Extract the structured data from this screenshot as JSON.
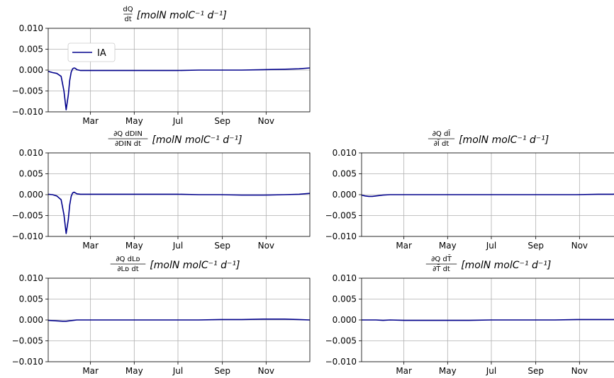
{
  "chart_data": [
    {
      "type": "line",
      "title_parts": {
        "num": "dQ",
        "den": "dt",
        "unit": "[molN molC⁻¹ d⁻¹]"
      },
      "x": [
        0,
        6,
        12,
        18,
        22,
        25,
        28,
        30,
        32,
        34,
        36,
        38,
        40,
        45,
        55,
        70,
        90,
        120,
        150,
        180,
        210,
        240,
        270,
        300,
        330,
        350,
        365
      ],
      "series": [
        {
          "name": "IA",
          "color": "#00008b",
          "values": [
            -0.0003,
            -0.0006,
            -0.0008,
            -0.0015,
            -0.005,
            -0.0095,
            -0.006,
            -0.0025,
            -0.0005,
            0.0003,
            0.0005,
            0.0004,
            0.0001,
            -0.0001,
            -0.0001,
            -0.0001,
            -0.0001,
            -0.0001,
            -0.0001,
            -0.0001,
            0.0,
            0.0,
            0.0,
            0.0001,
            0.0002,
            0.0003,
            0.0005
          ]
        }
      ],
      "xlim": [
        0,
        365
      ],
      "ylim": [
        -0.01,
        0.01
      ],
      "xticks": [
        {
          "pos": 59,
          "label": "Mar"
        },
        {
          "pos": 120,
          "label": "May"
        },
        {
          "pos": 181,
          "label": "Jul"
        },
        {
          "pos": 243,
          "label": "Sep"
        },
        {
          "pos": 304,
          "label": "Nov"
        }
      ],
      "yticks": [
        {
          "pos": 0.01,
          "label": "0.010"
        },
        {
          "pos": 0.005,
          "label": "0.005"
        },
        {
          "pos": 0.0,
          "label": "0.000"
        },
        {
          "pos": -0.005,
          "label": "−0.005"
        },
        {
          "pos": -0.01,
          "label": "−0.010"
        }
      ],
      "grid": true,
      "legend": "upper-left"
    },
    {
      "type": "line",
      "title_parts": {
        "num": "∂Q  dDIN",
        "den": "∂DIN   dt",
        "unit": "[molN molC⁻¹ d⁻¹]"
      },
      "x": [
        0,
        6,
        12,
        18,
        22,
        25,
        28,
        30,
        32,
        34,
        36,
        38,
        40,
        45,
        55,
        70,
        90,
        120,
        150,
        180,
        210,
        240,
        270,
        300,
        330,
        350,
        365
      ],
      "series": [
        {
          "name": "IA",
          "color": "#00008b",
          "values": [
            0.0001,
            0.0,
            -0.0003,
            -0.0012,
            -0.0048,
            -0.0093,
            -0.006,
            -0.0025,
            -0.0004,
            0.0004,
            0.0006,
            0.0004,
            0.0002,
            0.0001,
            0.0001,
            0.0001,
            0.0001,
            0.0001,
            0.0001,
            0.0001,
            0.0,
            0.0,
            -0.0001,
            -0.0001,
            0.0,
            0.0001,
            0.0003
          ]
        }
      ],
      "xlim": [
        0,
        365
      ],
      "ylim": [
        -0.01,
        0.01
      ],
      "xticks": [
        {
          "pos": 59,
          "label": "Mar"
        },
        {
          "pos": 120,
          "label": "May"
        },
        {
          "pos": 181,
          "label": "Jul"
        },
        {
          "pos": 243,
          "label": "Sep"
        },
        {
          "pos": 304,
          "label": "Nov"
        }
      ],
      "yticks": [
        {
          "pos": 0.01,
          "label": "0.010"
        },
        {
          "pos": 0.005,
          "label": "0.005"
        },
        {
          "pos": 0.0,
          "label": "0.000"
        },
        {
          "pos": -0.005,
          "label": "−0.005"
        },
        {
          "pos": -0.01,
          "label": "−0.010"
        }
      ],
      "grid": true
    },
    {
      "type": "line",
      "title_parts": {
        "num": "∂Q  dĪ",
        "den": "∂Ī  dt",
        "unit": "[molN molC⁻¹ d⁻¹]"
      },
      "x": [
        0,
        5,
        10,
        15,
        20,
        25,
        30,
        40,
        60,
        90,
        120,
        150,
        180,
        210,
        240,
        270,
        300,
        330,
        350,
        365
      ],
      "series": [
        {
          "name": "IA",
          "color": "#00008b",
          "values": [
            -0.0001,
            -0.0003,
            -0.0004,
            -0.0004,
            -0.0003,
            -0.0002,
            -0.0001,
            0.0,
            0.0,
            0.0,
            0.0,
            0.0,
            0.0,
            0.0,
            0.0,
            0.0,
            0.0,
            0.0001,
            0.0001,
            0.0002
          ]
        }
      ],
      "xlim": [
        0,
        365
      ],
      "ylim": [
        -0.01,
        0.01
      ],
      "xticks": [
        {
          "pos": 59,
          "label": "Mar"
        },
        {
          "pos": 120,
          "label": "May"
        },
        {
          "pos": 181,
          "label": "Jul"
        },
        {
          "pos": 243,
          "label": "Sep"
        },
        {
          "pos": 304,
          "label": "Nov"
        }
      ],
      "yticks": [
        {
          "pos": 0.01,
          "label": "0.010"
        },
        {
          "pos": 0.005,
          "label": "0.005"
        },
        {
          "pos": 0.0,
          "label": "0.000"
        },
        {
          "pos": -0.005,
          "label": "−0.005"
        },
        {
          "pos": -0.01,
          "label": "−0.010"
        }
      ],
      "grid": true
    },
    {
      "type": "line",
      "title_parts": {
        "num": "∂Q  dLᴅ",
        "den": "∂Lᴅ   dt",
        "unit": "[molN molC⁻¹ d⁻¹]"
      },
      "x": [
        0,
        10,
        20,
        25,
        30,
        35,
        40,
        60,
        90,
        120,
        150,
        180,
        210,
        240,
        270,
        300,
        330,
        350,
        365
      ],
      "series": [
        {
          "name": "IA",
          "color": "#00008b",
          "values": [
            -0.0001,
            -0.0002,
            -0.0003,
            -0.0003,
            -0.0002,
            -0.0001,
            0.0,
            0.0,
            0.0,
            0.0,
            0.0,
            0.0,
            0.0,
            0.0001,
            0.0001,
            0.0002,
            0.0002,
            0.0001,
            0.0
          ]
        }
      ],
      "xlim": [
        0,
        365
      ],
      "ylim": [
        -0.01,
        0.01
      ],
      "xticks": [
        {
          "pos": 59,
          "label": "Mar"
        },
        {
          "pos": 120,
          "label": "May"
        },
        {
          "pos": 181,
          "label": "Jul"
        },
        {
          "pos": 243,
          "label": "Sep"
        },
        {
          "pos": 304,
          "label": "Nov"
        }
      ],
      "yticks": [
        {
          "pos": 0.01,
          "label": "0.010"
        },
        {
          "pos": 0.005,
          "label": "0.005"
        },
        {
          "pos": 0.0,
          "label": "0.000"
        },
        {
          "pos": -0.005,
          "label": "−0.005"
        },
        {
          "pos": -0.01,
          "label": "−0.010"
        }
      ],
      "grid": true
    },
    {
      "type": "line",
      "title_parts": {
        "num": "∂Q  dT̄",
        "den": "∂T̄  dt",
        "unit": "[molN molC⁻¹ d⁻¹]"
      },
      "x": [
        0,
        10,
        20,
        30,
        40,
        60,
        90,
        120,
        150,
        180,
        210,
        240,
        270,
        300,
        330,
        350,
        365
      ],
      "series": [
        {
          "name": "IA",
          "color": "#00008b",
          "values": [
            0.0,
            0.0,
            0.0,
            -0.0001,
            0.0,
            -0.0001,
            -0.0001,
            -0.0001,
            -0.0001,
            0.0,
            0.0,
            0.0,
            0.0,
            0.0001,
            0.0001,
            0.0001,
            0.0
          ]
        }
      ],
      "xlim": [
        0,
        365
      ],
      "ylim": [
        -0.01,
        0.01
      ],
      "xticks": [
        {
          "pos": 59,
          "label": "Mar"
        },
        {
          "pos": 120,
          "label": "May"
        },
        {
          "pos": 181,
          "label": "Jul"
        },
        {
          "pos": 243,
          "label": "Sep"
        },
        {
          "pos": 304,
          "label": "Nov"
        }
      ],
      "yticks": [
        {
          "pos": 0.01,
          "label": "0.010"
        },
        {
          "pos": 0.005,
          "label": "0.005"
        },
        {
          "pos": 0.0,
          "label": "0.000"
        },
        {
          "pos": -0.005,
          "label": "−0.005"
        },
        {
          "pos": -0.01,
          "label": "−0.010"
        }
      ],
      "grid": true
    }
  ]
}
